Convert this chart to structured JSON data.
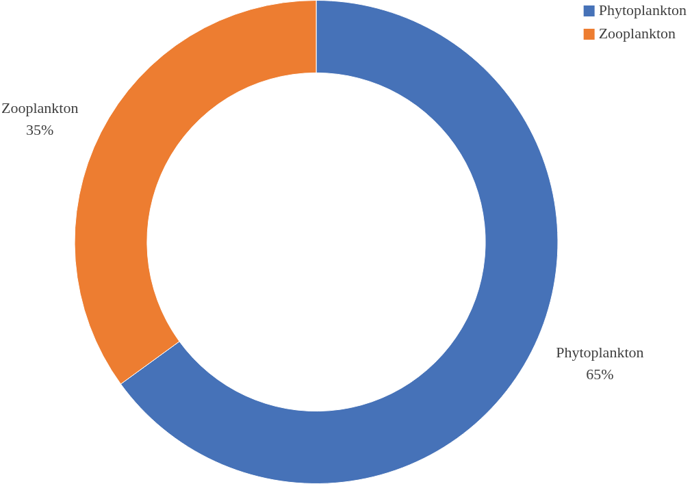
{
  "chart_data": {
    "type": "donut",
    "categories": [
      "Phytoplankton",
      "Zooplankton"
    ],
    "values": [
      65,
      35
    ],
    "colors": [
      "#4672b8",
      "#ed7d31"
    ],
    "value_labels": [
      "65%",
      "35%"
    ],
    "legend": "top right"
  }
}
